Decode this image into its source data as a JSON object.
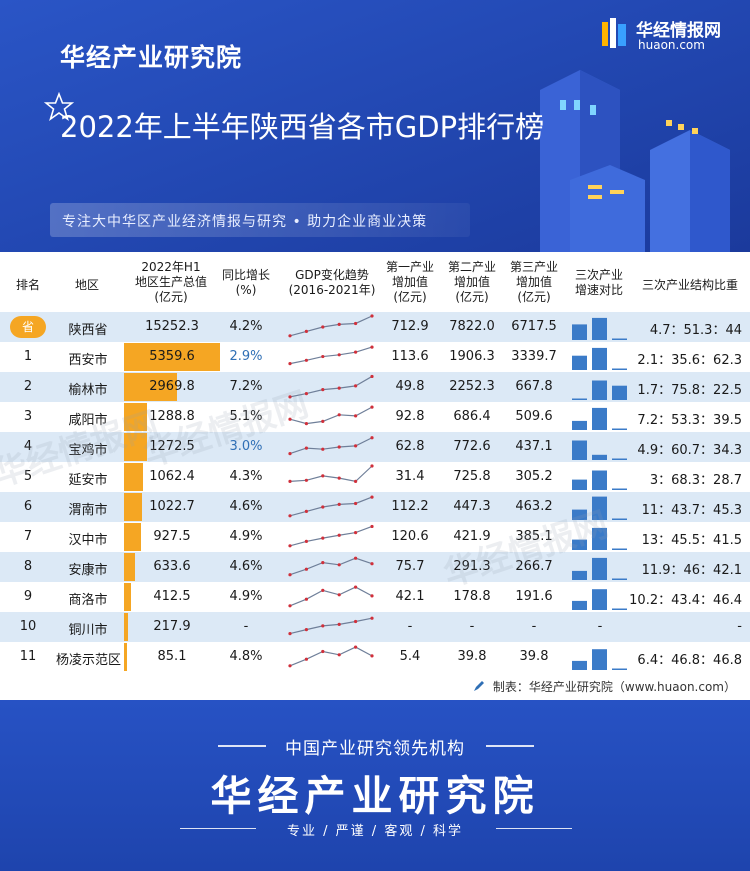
{
  "header": {
    "brand": "华经产业研究院",
    "title": "2022年上半年陕西省各市GDP排行榜",
    "slogan": "专注大中华区产业经济情报与研究 • 助力企业商业决策",
    "logo_name": "华经情报网",
    "logo_url": "huaon.com"
  },
  "table": {
    "headers": {
      "rank": "排名",
      "region": "地区",
      "gdp": [
        "2022年H1",
        "地区生产总值",
        "(亿元)"
      ],
      "growth": [
        "同比增长",
        "(%)"
      ],
      "trend": [
        "GDP变化趋势",
        "(2016-2021年)"
      ],
      "primary": [
        "第一产业",
        "增加值",
        "(亿元)"
      ],
      "secondary": [
        "第二产业",
        "增加值",
        "(亿元)"
      ],
      "tertiary": [
        "第三产业",
        "增加值",
        "(亿元)"
      ],
      "speed": [
        "三次产业",
        "增速对比"
      ],
      "structure": "三次产业结构比重"
    },
    "province_badge": "省",
    "rows": [
      {
        "rank": "",
        "region": "陕西省",
        "gdp": "15252.3",
        "growth": "4.2%",
        "primary": "712.9",
        "secondary": "7822.0",
        "tertiary": "6717.5",
        "structure": "4.7：51.3：44"
      },
      {
        "rank": "1",
        "region": "西安市",
        "gdp": "5359.6",
        "growth": "2.9%",
        "primary": "113.6",
        "secondary": "1906.3",
        "tertiary": "3339.7",
        "structure": "2.1：35.6：62.3"
      },
      {
        "rank": "2",
        "region": "榆林市",
        "gdp": "2969.8",
        "growth": "7.2%",
        "primary": "49.8",
        "secondary": "2252.3",
        "tertiary": "667.8",
        "structure": "1.7：75.8：22.5"
      },
      {
        "rank": "3",
        "region": "咸阳市",
        "gdp": "1288.8",
        "growth": "5.1%",
        "primary": "92.8",
        "secondary": "686.4",
        "tertiary": "509.6",
        "structure": "7.2：53.3：39.5"
      },
      {
        "rank": "4",
        "region": "宝鸡市",
        "gdp": "1272.5",
        "growth": "3.0%",
        "primary": "62.8",
        "secondary": "772.6",
        "tertiary": "437.1",
        "structure": "4.9：60.7：34.3"
      },
      {
        "rank": "5",
        "region": "延安市",
        "gdp": "1062.4",
        "growth": "4.3%",
        "primary": "31.4",
        "secondary": "725.8",
        "tertiary": "305.2",
        "structure": "3：68.3：28.7"
      },
      {
        "rank": "6",
        "region": "渭南市",
        "gdp": "1022.7",
        "growth": "4.6%",
        "primary": "112.2",
        "secondary": "447.3",
        "tertiary": "463.2",
        "structure": "11：43.7：45.3"
      },
      {
        "rank": "7",
        "region": "汉中市",
        "gdp": "927.5",
        "growth": "4.9%",
        "primary": "120.6",
        "secondary": "421.9",
        "tertiary": "385.1",
        "structure": "13：45.5：41.5"
      },
      {
        "rank": "8",
        "region": "安康市",
        "gdp": "633.6",
        "growth": "4.6%",
        "primary": "75.7",
        "secondary": "291.3",
        "tertiary": "266.7",
        "structure": "11.9：46：42.1"
      },
      {
        "rank": "9",
        "region": "商洛市",
        "gdp": "412.5",
        "growth": "4.9%",
        "primary": "42.1",
        "secondary": "178.8",
        "tertiary": "191.6",
        "structure": "10.2：43.4：46.4"
      },
      {
        "rank": "10",
        "region": "铜川市",
        "gdp": "217.9",
        "growth": "-",
        "primary": "-",
        "secondary": "-",
        "tertiary": "-",
        "speed_na": "-",
        "structure": "-"
      },
      {
        "rank": "11",
        "region": "杨凌示范区",
        "gdp": "85.1",
        "growth": "4.8%",
        "primary": "5.4",
        "secondary": "39.8",
        "tertiary": "39.8",
        "structure": "6.4：46.8：46.8"
      }
    ],
    "credit": "制表：华经产业研究院（www.huaon.com）",
    "watermark": "华经情报网"
  },
  "footer": {
    "tagline": "中国产业研究领先机构",
    "name": "华经产业研究院",
    "values": "专业 / 严谨 / 客观 / 科学"
  },
  "colors": {
    "bar": "#f5a623",
    "speed_bar": "#3b7bc8",
    "trend_line": "#6f7f99",
    "trend_point": "#d0303b",
    "row_alt": "#dce9f6"
  },
  "chart_data": {
    "type": "table",
    "title": "2022年上半年陕西省各市GDP排行榜",
    "columns": [
      "排名",
      "地区",
      "2022年H1地区生产总值(亿元)",
      "同比增长(%)",
      "第一产业增加值(亿元)",
      "第二产业增加值(亿元)",
      "第三产业增加值(亿元)",
      "三次产业结构比重"
    ],
    "gdp_bar": {
      "max": 5359.6,
      "values": [
        0,
        5359.6,
        2969.8,
        1288.8,
        1272.5,
        1062.4,
        1022.7,
        927.5,
        633.6,
        412.5,
        217.9,
        85.1
      ]
    },
    "growth_highlight_rows": [
      1,
      4
    ],
    "trend_series": [
      [
        0.1,
        0.3,
        0.5,
        0.62,
        0.66,
        1.0
      ],
      [
        0.2,
        0.35,
        0.52,
        0.6,
        0.72,
        0.95
      ],
      [
        0.05,
        0.2,
        0.38,
        0.45,
        0.55,
        0.98
      ],
      [
        0.4,
        0.2,
        0.3,
        0.6,
        0.55,
        0.95
      ],
      [
        0.2,
        0.45,
        0.4,
        0.5,
        0.55,
        0.92
      ],
      [
        0.3,
        0.35,
        0.55,
        0.45,
        0.3,
        1.0
      ],
      [
        0.1,
        0.3,
        0.5,
        0.62,
        0.66,
        0.95
      ],
      [
        0.1,
        0.3,
        0.45,
        0.58,
        0.7,
        0.98
      ],
      [
        0.15,
        0.4,
        0.7,
        0.6,
        0.9,
        0.65
      ],
      [
        0.1,
        0.4,
        0.8,
        0.6,
        0.95,
        0.55
      ],
      [
        0.2,
        0.38,
        0.55,
        0.62,
        0.75,
        0.9
      ],
      [
        0.1,
        0.4,
        0.75,
        0.6,
        0.95,
        0.55
      ]
    ],
    "speed_bars": [
      [
        0.6,
        0.85,
        0.05
      ],
      [
        0.55,
        0.85,
        0.05
      ],
      [
        0.05,
        0.75,
        0.55
      ],
      [
        0.35,
        0.85,
        0.05
      ],
      [
        0.75,
        0.2,
        0.05
      ],
      [
        0.4,
        0.75,
        0.05
      ],
      [
        0.4,
        0.9,
        0.05
      ],
      [
        0.4,
        0.85,
        0.05
      ],
      [
        0.35,
        0.85,
        0.05
      ],
      [
        0.35,
        0.8,
        0.05
      ],
      null,
      [
        0.35,
        0.8,
        0.05
      ]
    ]
  }
}
